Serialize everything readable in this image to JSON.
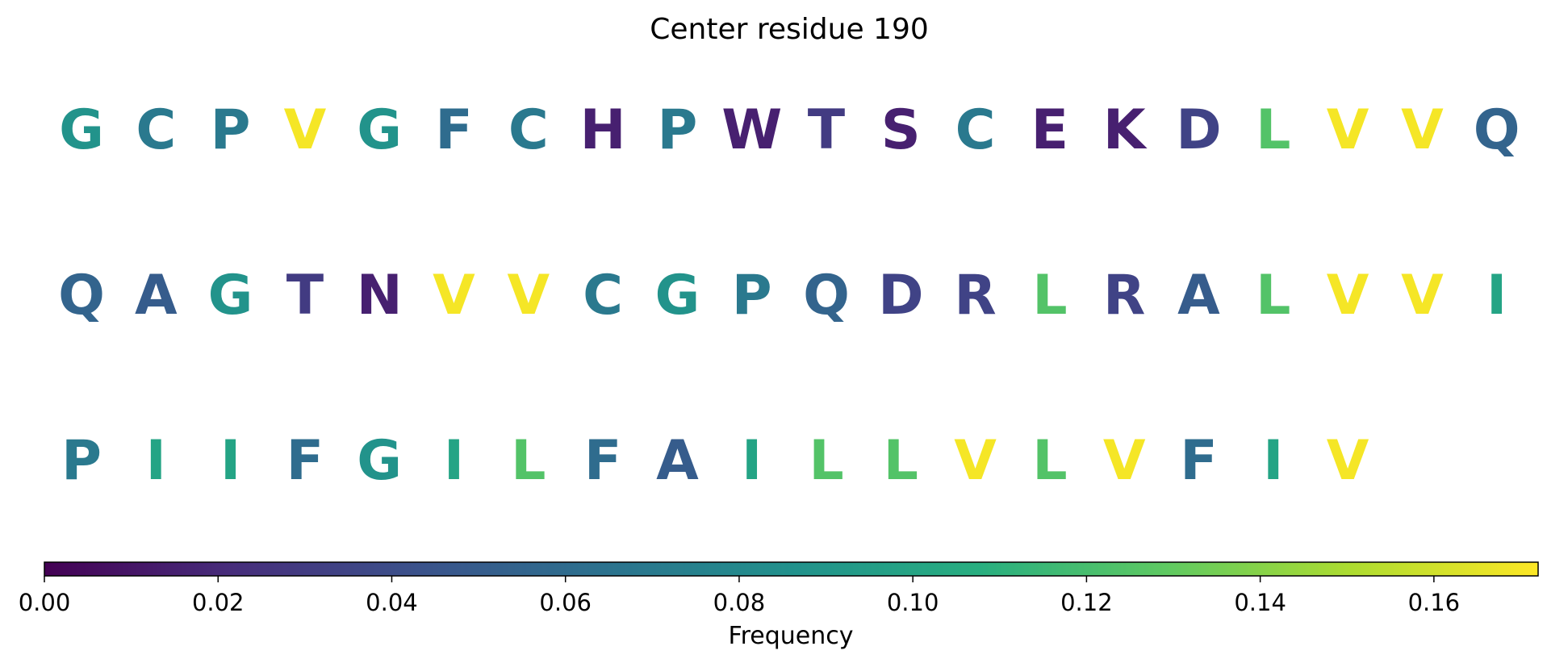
{
  "chart_data": {
    "type": "sequence-logo-heatmap",
    "title": "Center residue 190",
    "colormap": "viridis",
    "rows": [
      {
        "residues": [
          "G",
          "C",
          "P",
          "V",
          "G",
          "F",
          "C",
          "H",
          "P",
          "W",
          "T",
          "S",
          "C",
          "E",
          "K",
          "D",
          "L",
          "V",
          "V",
          "Q"
        ],
        "values": [
          0.088,
          0.07,
          0.07,
          0.17,
          0.088,
          0.06,
          0.07,
          0.015,
          0.07,
          0.015,
          0.03,
          0.015,
          0.07,
          0.015,
          0.015,
          0.035,
          0.125,
          0.17,
          0.17,
          0.055
        ]
      },
      {
        "residues": [
          "Q",
          "A",
          "G",
          "T",
          "N",
          "V",
          "V",
          "C",
          "G",
          "P",
          "Q",
          "D",
          "R",
          "L",
          "R",
          "A",
          "L",
          "V",
          "V",
          "I"
        ],
        "values": [
          0.055,
          0.05,
          0.088,
          0.03,
          0.015,
          0.17,
          0.17,
          0.07,
          0.088,
          0.07,
          0.055,
          0.035,
          0.035,
          0.125,
          0.035,
          0.05,
          0.125,
          0.17,
          0.17,
          0.1
        ]
      },
      {
        "residues": [
          "P",
          "I",
          "I",
          "F",
          "G",
          "I",
          "L",
          "F",
          "A",
          "I",
          "L",
          "L",
          "V",
          "L",
          "V",
          "F",
          "I",
          "V"
        ],
        "values": [
          0.07,
          0.1,
          0.1,
          0.06,
          0.088,
          0.1,
          0.125,
          0.06,
          0.05,
          0.1,
          0.125,
          0.125,
          0.17,
          0.125,
          0.17,
          0.06,
          0.1,
          0.17
        ]
      }
    ],
    "colorbar": {
      "label": "Frequency",
      "range": [
        0,
        0.172
      ],
      "ticks": [
        0.0,
        0.02,
        0.04,
        0.06,
        0.08,
        0.1,
        0.12,
        0.14,
        0.16
      ],
      "tick_labels": [
        "0.00",
        "0.02",
        "0.04",
        "0.06",
        "0.08",
        "0.10",
        "0.12",
        "0.14",
        "0.16"
      ]
    }
  }
}
